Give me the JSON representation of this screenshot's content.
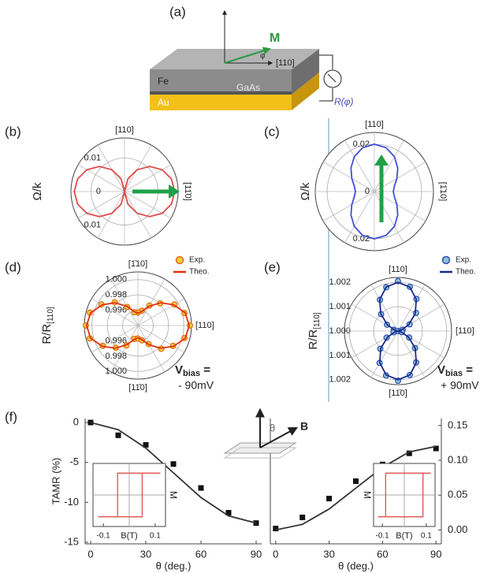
{
  "panel_labels": [
    "(a)",
    "(b)",
    "(c)",
    "(d)",
    "(e)",
    "(f)"
  ],
  "schematic": {
    "magnetization": "M",
    "angle": "φ",
    "direction": "[110]",
    "layer_top": "Fe",
    "layer_middle": "GaAs",
    "layer_bottom": "Au",
    "resistance": "R(φ)"
  },
  "field_icon": {
    "angle": "θ",
    "field": "B"
  },
  "chart_data": [
    {
      "type": "polar",
      "ylabel": "Ω/k",
      "direction_labels": {
        "top": "[110]",
        "right": "[11̄0]"
      },
      "theta": [
        0,
        15,
        30,
        45,
        60,
        75,
        90,
        105,
        120,
        135,
        150,
        165,
        180,
        195,
        210,
        225,
        240,
        255,
        270,
        285,
        300,
        315,
        330,
        345
      ],
      "values": [
        0.015,
        0.0145,
        0.013,
        0.0106,
        0.0075,
        0.0039,
        0,
        0.0039,
        0.0075,
        0.0106,
        0.013,
        0.0145,
        0.015,
        0.0145,
        0.013,
        0.0106,
        0.0075,
        0.0039,
        0,
        0.0039,
        0.0075,
        0.0106,
        0.013,
        0.0145
      ],
      "color": "#e04848",
      "rlim": [
        0,
        0.016
      ],
      "rticks": [
        0,
        0.01
      ]
    },
    {
      "type": "polar",
      "ylabel": "Ω/k",
      "direction_labels": {
        "top": "[110]",
        "right": "[1̄10]"
      },
      "theta": [
        0,
        15,
        30,
        45,
        60,
        75,
        90,
        105,
        120,
        135,
        150,
        165,
        180,
        195,
        210,
        225,
        240,
        255,
        270,
        285,
        300,
        315,
        330,
        345
      ],
      "values": [
        0.008,
        0.0088,
        0.011,
        0.014,
        0.017,
        0.0192,
        0.02,
        0.0192,
        0.017,
        0.014,
        0.011,
        0.0088,
        0.008,
        0.0088,
        0.011,
        0.014,
        0.017,
        0.0192,
        0.02,
        0.0192,
        0.017,
        0.014,
        0.011,
        0.0088
      ],
      "color": "#4050d8",
      "rlim": [
        0,
        0.025
      ],
      "rticks": [
        0,
        0.02
      ]
    },
    {
      "type": "polar",
      "ylabel": "R/R",
      "ylabel_sub": "[110]",
      "direction_labels": {
        "top": "[1̄10]",
        "right": "[110]",
        "bottom": "[11̄0]"
      },
      "theta": [
        0,
        15,
        30,
        45,
        60,
        75,
        90,
        105,
        120,
        135,
        150,
        165,
        180,
        195,
        210,
        225,
        240,
        255,
        270,
        285,
        300,
        315,
        330,
        345
      ],
      "series": [
        {
          "name": "Exp.",
          "style": "markers",
          "color": "#f5c842",
          "edgecolor": "#e07010",
          "values": [
            1.0008,
            1.0003,
            0.9995,
            0.9981,
            0.997,
            0.996,
            0.9957,
            0.9958,
            0.9968,
            0.9983,
            0.9995,
            1.0005,
            1.0008,
            1.0005,
            0.9993,
            0.9981,
            0.997,
            0.9958,
            0.9957,
            0.996,
            0.9968,
            0.9983,
            0.9993,
            1.0003
          ]
        },
        {
          "name": "Theo.",
          "style": "line",
          "color": "#e03010",
          "values": [
            1.0007,
            1.0004,
            0.9994,
            0.9982,
            0.9969,
            0.9959,
            0.9956,
            0.9959,
            0.9969,
            0.9982,
            0.9994,
            1.0004,
            1.0007,
            1.0004,
            0.9994,
            0.9982,
            0.9969,
            0.9959,
            0.9956,
            0.9959,
            0.9969,
            0.9982,
            0.9994,
            1.0004
          ]
        }
      ],
      "rlim": [
        0.994,
        1.001
      ],
      "rticks": [
        0.996,
        0.998,
        {
          "value": 1,
          "label": "1.000"
        }
      ],
      "annotation": {
        "symbol": "V",
        "subscript": "bias",
        "equals": " =",
        "value": "- 90mV"
      }
    },
    {
      "type": "polar",
      "ylabel": "R/R",
      "ylabel_sub": "[110]",
      "direction_labels": {
        "top": "[110]",
        "right": "[110]",
        "bottom": "[11̄0]"
      },
      "theta": [
        0,
        15,
        30,
        45,
        60,
        75,
        90,
        105,
        120,
        135,
        150,
        165,
        180,
        195,
        210,
        225,
        240,
        255,
        270,
        285,
        300,
        315,
        330,
        345
      ],
      "series": [
        {
          "name": "Exp.",
          "style": "markers",
          "color": "#8fc0d8",
          "edgecolor": "#3050b0",
          "values": [
            1.00005,
            1.0002,
            1.00055,
            1.00105,
            1.00152,
            1.00188,
            1.00205,
            1.00186,
            1.00148,
            1.00098,
            1.00052,
            1.00018,
            1.00006,
            1.00019,
            1.00054,
            1.00103,
            1.00151,
            1.00189,
            1.00204,
            1.00187,
            1.00149,
            1.00099,
            1.00053,
            1.00017
          ]
        },
        {
          "name": "Theo.",
          "style": "line",
          "color": "#1a2a8a",
          "values": [
            1,
            1.00013,
            1.0005,
            1.001,
            1.0015,
            1.00187,
            1.002,
            1.00187,
            1.0015,
            1.001,
            1.0005,
            1.00013,
            1,
            1.00013,
            1.0005,
            1.001,
            1.0015,
            1.00187,
            1.002,
            1.00187,
            1.0015,
            1.001,
            1.0005,
            1.00013
          ]
        }
      ],
      "rlim": [
        1,
        1.0022
      ],
      "rticks": [
        {
          "value": 1,
          "label": "1.000"
        },
        1.001,
        1.002
      ],
      "annotation": {
        "symbol": "V",
        "subscript": "bias",
        "equals": " =",
        "value": "+ 90mV"
      }
    },
    {
      "type": "line",
      "ylabel": "TAMR (%)",
      "xlabel": "θ (deg.)",
      "x": [
        0,
        15,
        30,
        45,
        60,
        75,
        90
      ],
      "series": [
        {
          "style": "markers",
          "color": "#111111",
          "values": [
            0,
            -1.6,
            -2.8,
            -5.2,
            -8.2,
            -11.3,
            -12.6
          ]
        },
        {
          "style": "line",
          "color": "#333333",
          "values": [
            0,
            -0.9,
            -3.2,
            -6.3,
            -9.4,
            -11.7,
            -12.6
          ]
        }
      ],
      "xlim": [
        -3,
        93
      ],
      "xticks": [
        0,
        30,
        60,
        90
      ],
      "ylim": [
        -15.2,
        0.5
      ],
      "yticks": [
        -15,
        -10,
        -5,
        0
      ],
      "yaxis": "left"
    },
    {
      "type": "line",
      "xlabel": "θ (deg.)",
      "x": [
        0,
        15,
        30,
        45,
        60,
        75,
        90
      ],
      "series": [
        {
          "style": "markers",
          "color": "#111111",
          "values": [
            0.002,
            0.018,
            0.045,
            0.07,
            0.094,
            0.11,
            0.117
          ]
        },
        {
          "style": "line",
          "color": "#333333",
          "values": [
            0,
            0.008,
            0.03,
            0.06,
            0.09,
            0.112,
            0.12
          ]
        }
      ],
      "xlim": [
        -3,
        93
      ],
      "xticks": [
        0,
        30,
        60,
        90
      ],
      "ylim": [
        -0.02,
        0.16
      ],
      "yticks": [
        {
          "value": 0,
          "label": "0.00"
        },
        0.05,
        {
          "value": 0.1,
          "label": "0.10"
        },
        0.15
      ],
      "yaxis": "right"
    },
    {
      "type": "line",
      "xlabel": "B(T)",
      "ylabel": "M",
      "x": [
        0.12,
        -0.045,
        -0.045,
        -0.12,
        0.05,
        0.05,
        0.12
      ],
      "values": [
        0.9,
        0.9,
        -0.9,
        -0.9,
        -0.9,
        0.9,
        0.9
      ],
      "color": "#e05050",
      "xlim": [
        -0.14,
        0.14
      ],
      "xticks": [
        -0.1,
        0.1
      ],
      "ylim": [
        -1.3,
        1.3
      ],
      "inset": true
    },
    {
      "type": "line",
      "xlabel": "B(T)",
      "ylabel": "M",
      "x": [
        0.12,
        -0.085,
        -0.085,
        -0.12,
        0.085,
        0.085,
        0.12
      ],
      "values": [
        0.9,
        0.9,
        -0.9,
        -0.9,
        -0.9,
        0.9,
        0.9
      ],
      "color": "#e05050",
      "xlim": [
        -0.14,
        0.14
      ],
      "xticks": [
        -0.1,
        0.1
      ],
      "ylim": [
        -1.3,
        1.3
      ],
      "inset": true
    }
  ]
}
